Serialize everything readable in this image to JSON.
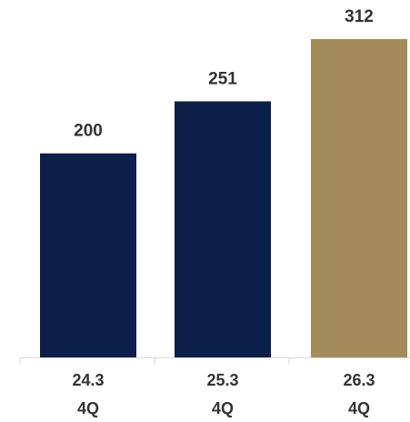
{
  "chart_data": {
    "type": "bar",
    "title": "",
    "xlabel": "",
    "ylabel": "",
    "categories": [
      [
        "24.3",
        "4Q"
      ],
      [
        "25.3",
        "4Q"
      ],
      [
        "26.3",
        "4Q"
      ]
    ],
    "values": [
      200,
      251,
      312
    ],
    "data_labels": [
      "200",
      "251",
      "312"
    ],
    "ylim": [
      0,
      312
    ],
    "grid": false,
    "legend": "none",
    "colors": {
      "bar_default": "#0c1f4a",
      "bar_highlight": "#a38b5a",
      "axis": "#d9d9d9",
      "text": "#333333"
    },
    "highlight_index": 2
  }
}
